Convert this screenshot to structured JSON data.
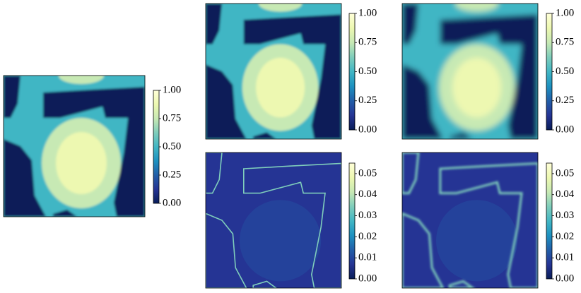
{
  "colormap": [
    "#081d58",
    "#253494",
    "#225ea8",
    "#1d91c0",
    "#41b6c4",
    "#7fcdbb",
    "#c7e9b4",
    "#edf8b1",
    "#ffffd9"
  ],
  "chart_data": [
    {
      "type": "heatmap",
      "ylim": [
        0,
        1
      ],
      "yticks": [
        {
          "value": 0,
          "label": "0.00"
        },
        0.25,
        {
          "value": 0.5,
          "label": "0.50"
        },
        0.75,
        {
          "value": 1,
          "label": "1.00"
        }
      ]
    },
    {
      "type": "heatmap",
      "ylim": [
        0,
        1
      ],
      "yticks": [
        {
          "value": 0,
          "label": "0.00"
        },
        0.25,
        {
          "value": 0.5,
          "label": "0.50"
        },
        0.75,
        {
          "value": 1,
          "label": "1.00"
        }
      ]
    },
    {
      "type": "heatmap",
      "ylim": [
        0,
        1
      ],
      "yticks": [
        {
          "value": 0,
          "label": "0.00"
        },
        0.25,
        {
          "value": 0.5,
          "label": "0.50"
        },
        0.75,
        {
          "value": 1,
          "label": "1.00"
        }
      ]
    },
    {
      "type": "heatmap",
      "ylim": [
        0,
        0.055
      ],
      "yticks": [
        {
          "value": 0,
          "label": "0.00"
        },
        0.01,
        0.02,
        0.03,
        0.04,
        0.05
      ]
    },
    {
      "type": "heatmap",
      "ylim": [
        0,
        0.055
      ],
      "yticks": [
        {
          "value": 0,
          "label": "0.00"
        },
        0.01,
        0.02,
        0.03,
        0.04,
        0.05
      ]
    }
  ]
}
